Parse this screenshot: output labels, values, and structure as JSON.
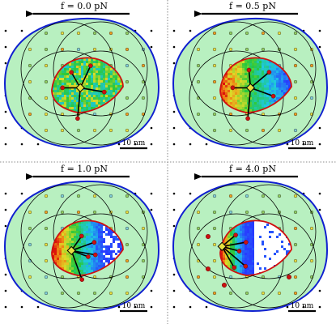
{
  "panels": [
    {
      "force_label": "f = 0.0 pN",
      "scale_label": "10 nm",
      "heat_mode": "uniform",
      "filament_angles_deg": [
        -120,
        -65,
        95,
        180,
        10
      ],
      "anchor_offset": [
        -0.2,
        0.1
      ]
    },
    {
      "force_label": "f = 0.5 pN",
      "scale_label": "10 nm",
      "heat_mode": "gradient_left",
      "filament_angles_deg": [
        -95,
        -40,
        95,
        180,
        20
      ],
      "anchor_offset": [
        -0.15,
        0.1
      ]
    },
    {
      "force_label": "f = 1.0 pN",
      "scale_label": "10 nm",
      "heat_mode": "gradient_left_strong",
      "filament_angles_deg": [
        -55,
        -20,
        70,
        20,
        10
      ],
      "anchor_offset": [
        -0.45,
        0.1
      ]
    },
    {
      "force_label": "f = 4.0 pN",
      "scale_label": "10 nm",
      "heat_mode": "edge_left",
      "filament_angles_deg": [
        -40,
        -10,
        40,
        15,
        60
      ],
      "anchor_offset": [
        -0.95,
        -0.05
      ]
    }
  ],
  "colors": {
    "outer_fill": "#b8f0c0",
    "outer_stroke": "#1020d0",
    "inner_stroke": "#d01010",
    "node_red": "#cc1010",
    "node_orange": "#f0a020",
    "node_yellow": "#e8e040",
    "node_green": "#90d060",
    "node_cyan": "#80d0d8",
    "heat_low": "#3050ff",
    "heat_mid": "#20c0e0",
    "heat_high": "#e02010"
  }
}
